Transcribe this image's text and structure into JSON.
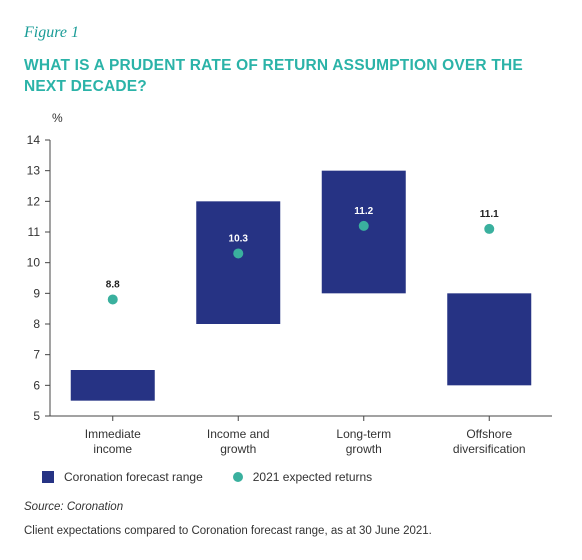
{
  "figure_label": "Figure 1",
  "title": "WHAT IS A PRUDENT RATE OF RETURN ASSUMPTION OVER THE NEXT DECADE?",
  "colors": {
    "range": "#263384",
    "point": "#3ab09e",
    "title": "#2bb3a8"
  },
  "chart_data": {
    "type": "bar",
    "unit_label": "%",
    "ylim": [
      5,
      14
    ],
    "yticks": [
      "5",
      "6",
      "7",
      "8",
      "9",
      "10",
      "11",
      "12",
      "13",
      "14"
    ],
    "categories": [
      [
        "Immediate",
        "income"
      ],
      [
        "Income and",
        "growth"
      ],
      [
        "Long-term",
        "growth"
      ],
      [
        "Offshore",
        "diversification"
      ]
    ],
    "series": [
      {
        "name": "Coronation forecast range",
        "ranges": [
          [
            5.5,
            6.5
          ],
          [
            8,
            12
          ],
          [
            9,
            13
          ],
          [
            6,
            9
          ]
        ]
      },
      {
        "name": "2021 expected returns",
        "values": [
          8.8,
          10.3,
          11.2,
          11.1
        ],
        "labels": [
          "8.8",
          "10.3",
          "11.2",
          "11.1"
        ]
      }
    ],
    "legend_position": "bottom-left",
    "grid": false
  },
  "legend": {
    "range_label": "Coronation forecast range",
    "point_label": "2021 expected returns"
  },
  "source": "Source: Coronation",
  "footnote": "Client expectations compared to Coronation forecast range, as at 30 June 2021."
}
